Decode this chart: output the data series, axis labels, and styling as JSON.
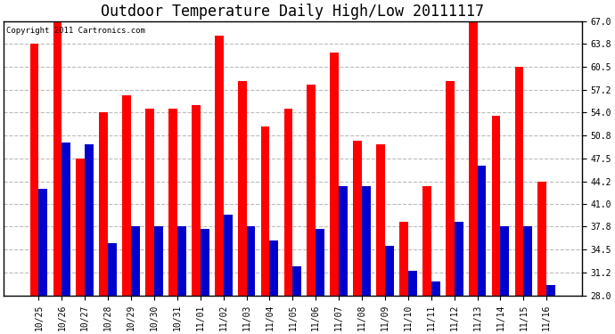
{
  "title": "Outdoor Temperature Daily High/Low 20111117",
  "copyright": "Copyright 2011 Cartronics.com",
  "categories": [
    "10/25",
    "10/26",
    "10/27",
    "10/28",
    "10/29",
    "10/30",
    "10/31",
    "11/01",
    "11/02",
    "11/03",
    "11/04",
    "11/05",
    "11/06",
    "11/07",
    "11/08",
    "11/09",
    "11/10",
    "11/11",
    "11/12",
    "11/13",
    "11/14",
    "11/15",
    "11/16"
  ],
  "highs": [
    63.8,
    67.0,
    47.5,
    54.0,
    56.5,
    54.5,
    54.5,
    55.0,
    65.0,
    58.5,
    52.0,
    54.5,
    58.0,
    62.5,
    50.0,
    49.5,
    38.5,
    43.5,
    58.5,
    67.0,
    53.5,
    60.5,
    44.2
  ],
  "lows": [
    43.2,
    49.8,
    49.5,
    35.5,
    37.8,
    37.8,
    37.8,
    37.5,
    39.5,
    37.8,
    35.8,
    32.2,
    37.5,
    43.5,
    43.5,
    35.0,
    31.5,
    30.0,
    38.5,
    46.5,
    37.8,
    37.8,
    29.5
  ],
  "high_color": "#ff0000",
  "low_color": "#0000cc",
  "bg_color": "#ffffff",
  "plot_bg_color": "#ffffff",
  "grid_color": "#bbbbbb",
  "ylim_min": 28.0,
  "ylim_max": 67.0,
  "yticks": [
    28.0,
    31.2,
    34.5,
    37.8,
    41.0,
    44.2,
    47.5,
    50.8,
    54.0,
    57.2,
    60.5,
    63.8,
    67.0
  ],
  "title_fontsize": 12,
  "tick_fontsize": 7,
  "copyright_fontsize": 6.5,
  "bar_width": 0.38,
  "figwidth": 6.9,
  "figheight": 3.75
}
